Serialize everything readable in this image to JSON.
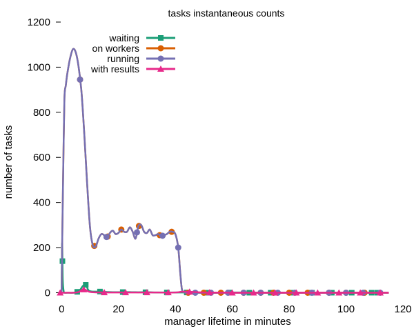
{
  "chart_data": {
    "type": "line",
    "title": "tasks instantaneous counts",
    "xlabel": "manager lifetime in minutes",
    "ylabel": "number of tasks",
    "xlim": [
      -2,
      120
    ],
    "ylim": [
      -20,
      1200
    ],
    "xticks": [
      0,
      20,
      40,
      60,
      80,
      100,
      120
    ],
    "yticks": [
      0,
      200,
      400,
      600,
      800,
      1000,
      1200
    ],
    "grid": false,
    "legend_position": "top-left",
    "series": [
      {
        "name": "waiting",
        "color": "#1b9e77",
        "marker": "square",
        "x": [
          0,
          0.2,
          0.4,
          0.7,
          1,
          2,
          4,
          6,
          7.5,
          8.5,
          9.5,
          11,
          14,
          16,
          20,
          22,
          26,
          30,
          34,
          38,
          41,
          43,
          46,
          50,
          55,
          60,
          64,
          66,
          70,
          75,
          80,
          85,
          90,
          95,
          100,
          105,
          110,
          115
        ],
        "y": [
          0,
          220,
          60,
          10,
          0,
          0,
          0,
          5,
          30,
          35,
          10,
          5,
          5,
          3,
          2,
          3,
          2,
          2,
          1,
          1,
          1,
          1,
          1,
          0,
          0,
          1,
          1,
          0,
          0,
          0,
          0,
          0,
          0,
          0,
          0,
          0,
          0,
          0
        ],
        "marker_x": [
          0.3,
          5.5,
          8.5,
          13.5,
          21.5,
          29.5,
          37,
          44,
          51.5,
          59,
          66,
          73.5,
          81,
          88,
          95,
          102,
          109,
          111
        ]
      },
      {
        "name": "on workers",
        "color": "#d95f02",
        "marker": "circle",
        "x": [
          0,
          0.3,
          0.6,
          1,
          1.5,
          2,
          3,
          4,
          5,
          6,
          7,
          8,
          9,
          10,
          11,
          12,
          13,
          14,
          15,
          16,
          17,
          18,
          19,
          20,
          21,
          22,
          23,
          24,
          25,
          26,
          27,
          28,
          29,
          30,
          31,
          32,
          33,
          34,
          35,
          36,
          37,
          38,
          39,
          40,
          41,
          41.7,
          42.3,
          43,
          44,
          46,
          50,
          60,
          70,
          80,
          90,
          100,
          110,
          115
        ],
        "y": [
          0,
          300,
          560,
          860,
          920,
          970,
          1040,
          1080,
          1065,
          1000,
          890,
          700,
          480,
          290,
          210,
          205,
          240,
          260,
          255,
          245,
          265,
          275,
          260,
          265,
          280,
          270,
          270,
          290,
          270,
          240,
          295,
          300,
          270,
          265,
          280,
          255,
          255,
          260,
          250,
          255,
          260,
          270,
          270,
          260,
          200,
          90,
          15,
          2,
          0,
          0,
          0,
          0,
          0,
          0,
          0,
          0,
          0,
          0
        ],
        "marker_x": [
          6.5,
          11.5,
          16.2,
          21,
          27.2,
          34.5,
          38.7,
          44.5,
          50,
          56,
          64,
          70,
          74.5,
          80,
          86.5,
          94,
          100,
          106.5
        ]
      },
      {
        "name": "running",
        "color": "#7570b3",
        "marker": "circle",
        "x": [
          0,
          0.3,
          0.6,
          1,
          1.5,
          2,
          3,
          4,
          5,
          6,
          7,
          8,
          9,
          10,
          11,
          12,
          13,
          14,
          15,
          16,
          17,
          18,
          19,
          20,
          21,
          22,
          23,
          24,
          25,
          26,
          27,
          28,
          29,
          30,
          31,
          32,
          33,
          34,
          35,
          36,
          37,
          38,
          39,
          40,
          41,
          41.7,
          42.3,
          43,
          44,
          46,
          50,
          60,
          70,
          80,
          90,
          100,
          110,
          115
        ],
        "y": [
          0,
          300,
          560,
          860,
          920,
          970,
          1040,
          1080,
          1065,
          1000,
          890,
          700,
          480,
          290,
          210,
          205,
          240,
          260,
          255,
          245,
          265,
          275,
          260,
          265,
          280,
          270,
          270,
          290,
          270,
          240,
          295,
          300,
          270,
          265,
          280,
          255,
          255,
          260,
          250,
          255,
          260,
          270,
          270,
          260,
          200,
          90,
          15,
          2,
          0,
          0,
          0,
          0,
          0,
          0,
          0,
          0,
          0,
          0
        ],
        "marker_x": [
          6.5,
          15.8,
          26.5,
          35.5,
          41,
          47,
          52.5,
          58.5,
          64,
          70,
          76,
          82,
          88,
          94,
          100,
          106,
          112
        ]
      },
      {
        "name": "with results",
        "color": "#e7298a",
        "marker": "triangle",
        "x": [
          0,
          2,
          4,
          6,
          7.5,
          8.5,
          9.5,
          11,
          14,
          20,
          30,
          40,
          43,
          50,
          60,
          70,
          80,
          90,
          100,
          110,
          115
        ],
        "y": [
          0,
          0,
          0,
          3,
          15,
          12,
          5,
          2,
          1,
          1,
          1,
          1,
          5,
          1,
          0,
          0,
          0,
          0,
          0,
          0,
          0
        ],
        "marker_x": [
          -0.5,
          7.8,
          15,
          22.5,
          30,
          37.5,
          45,
          52,
          60,
          67.5,
          75,
          82.5,
          90,
          97.5,
          105,
          112
        ]
      }
    ]
  }
}
